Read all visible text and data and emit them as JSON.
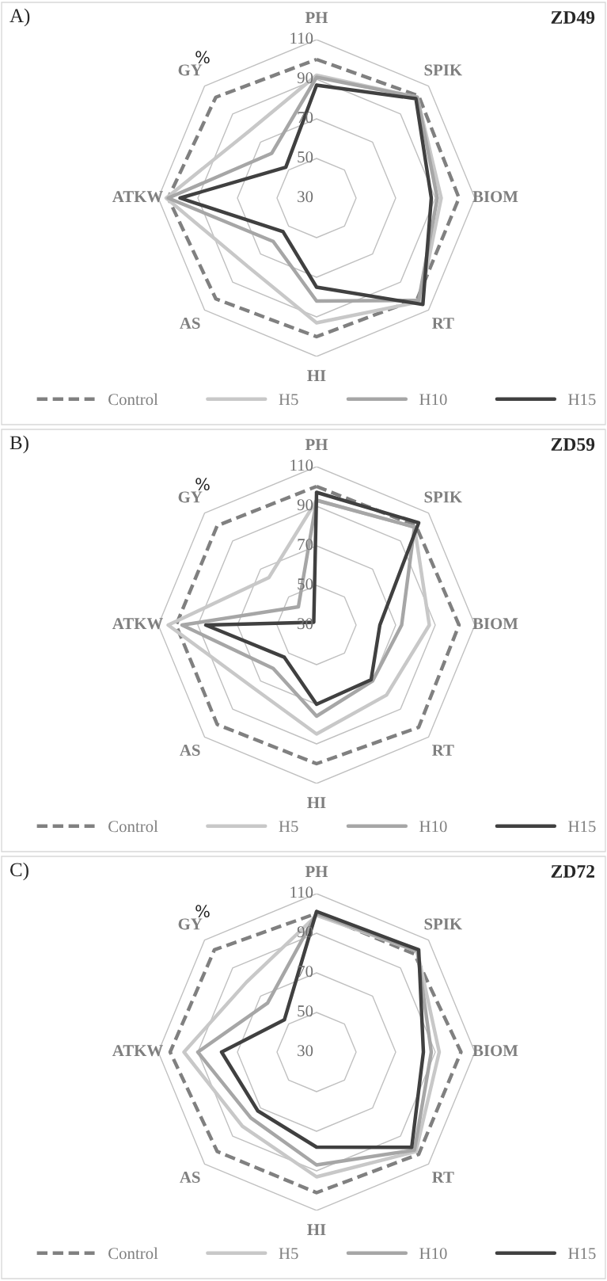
{
  "chart_data": [
    {
      "type": "radar",
      "title": "A)",
      "subtitle": "ZD49",
      "ylabel": "%",
      "categories": [
        "PH",
        "SPIK",
        "BIOM",
        "RT",
        "HI",
        "AS",
        "ATKW",
        "GY"
      ],
      "ylim": [
        30,
        110
      ],
      "yticks": [
        30,
        50,
        70,
        90,
        110
      ],
      "grid": true,
      "legend": "bottom",
      "series": [
        {
          "name": "Control",
          "color": "#808080",
          "line_style": "dashed",
          "values": [
            100,
            103,
            102,
            102,
            100,
            102,
            105,
            102
          ]
        },
        {
          "name": "H5",
          "color": "#c8c8c8",
          "line_style": "solid",
          "values": [
            92,
            102,
            93,
            104,
            93,
            79,
            106,
            78
          ]
        },
        {
          "name": "H10",
          "color": "#a6a6a6",
          "line_style": "solid",
          "values": [
            91,
            102,
            91,
            103,
            82,
            61,
            105,
            62
          ]
        },
        {
          "name": "H15",
          "color": "#404040",
          "line_style": "solid",
          "values": [
            87,
            101,
            88,
            106,
            75,
            54,
            99,
            52
          ]
        }
      ]
    },
    {
      "type": "radar",
      "title": "B)",
      "subtitle": "ZD59",
      "ylabel": "%",
      "categories": [
        "PH",
        "SPIK",
        "BIOM",
        "RT",
        "HI",
        "AS",
        "ATKW",
        "GY"
      ],
      "ylim": [
        30,
        110
      ],
      "yticks": [
        30,
        50,
        70,
        90,
        110
      ],
      "grid": true,
      "legend": "bottom",
      "series": [
        {
          "name": "Control",
          "color": "#808080",
          "line_style": "dashed",
          "values": [
            100,
            101,
            102,
            103,
            100,
            101,
            101,
            101
          ]
        },
        {
          "name": "H5",
          "color": "#c8c8c8",
          "line_style": "solid",
          "values": [
            93,
            100,
            87,
            80,
            85,
            75,
            105,
            64
          ]
        },
        {
          "name": "H10",
          "color": "#a6a6a6",
          "line_style": "solid",
          "values": [
            93,
            100,
            73,
            70,
            76,
            61,
            98,
            43
          ]
        },
        {
          "name": "H15",
          "color": "#404040",
          "line_style": "solid",
          "values": [
            97,
            103,
            62,
            69,
            70,
            53,
            86,
            32
          ]
        }
      ]
    },
    {
      "type": "radar",
      "title": "C)",
      "subtitle": "ZD72",
      "ylabel": "%",
      "categories": [
        "PH",
        "SPIK",
        "BIOM",
        "RT",
        "HI",
        "AS",
        "ATKW",
        "GY"
      ],
      "ylim": [
        30,
        110
      ],
      "yticks": [
        30,
        50,
        70,
        90,
        110
      ],
      "grid": true,
      "legend": "bottom",
      "series": [
        {
          "name": "Control",
          "color": "#808080",
          "line_style": "dashed",
          "values": [
            100,
            100,
            103,
            103,
            101,
            101,
            104,
            103
          ]
        },
        {
          "name": "H5",
          "color": "#c8c8c8",
          "line_style": "solid",
          "values": [
            99,
            102,
            92,
            101,
            93,
            83,
            97,
            80
          ]
        },
        {
          "name": "H10",
          "color": "#a6a6a6",
          "line_style": "solid",
          "values": [
            100,
            102,
            88,
            100,
            87,
            77,
            90,
            65
          ]
        },
        {
          "name": "H15",
          "color": "#404040",
          "line_style": "solid",
          "values": [
            101,
            103,
            84,
            98,
            78,
            72,
            78,
            53
          ]
        }
      ]
    }
  ]
}
